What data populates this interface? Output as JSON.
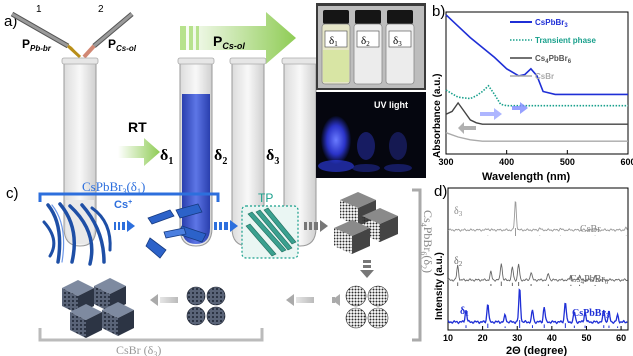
{
  "panel_a": {
    "label": "a)",
    "pipette1_num": "1",
    "pipette2_num": "2",
    "p_pbbr": "P",
    "p_pbbr_sub": "Pb-br",
    "p_csol": "P",
    "p_csol_sub": "Cs-ol",
    "arrow_top": "P",
    "arrow_top_sub": "Cs-ol",
    "rt": "RT",
    "tube_labels": [
      "δ",
      "δ",
      "δ"
    ],
    "tube_subs": [
      "1",
      "2",
      "3"
    ],
    "vial_labels": [
      "δ",
      "δ",
      "δ"
    ],
    "vial_subs": [
      "1",
      "2",
      "3"
    ],
    "uv_light": "UV light",
    "colors": {
      "blue_liquid": "#3a54c8",
      "uv_glow": "#3a4cff",
      "green_arrow": "#9ed36a"
    }
  },
  "panel_b": {
    "label": "b)",
    "ylabel": "Absorbance (a.u.)",
    "xlabel": "Wavelength (nm)",
    "xticks": [
      "300",
      "400",
      "500",
      "600"
    ],
    "legend": [
      {
        "name": "CsPbBr",
        "sub": "3",
        "color": "#1f2fd6",
        "style": "solid"
      },
      {
        "name": "Transient phase",
        "sub": "",
        "color": "#19a08c",
        "style": "dotted"
      },
      {
        "name": "Cs",
        "sub": "4",
        "tail": "PbBr",
        "sub2": "6",
        "color": "#444444",
        "style": "solid"
      },
      {
        "name": "CsBr",
        "sub": "",
        "color": "#aaaaaa",
        "style": "solid"
      }
    ]
  },
  "chart_b": {
    "type": "line",
    "xlim": [
      300,
      600
    ],
    "xlabel": "Wavelength (nm)",
    "ylabel": "Absorbance (a.u.)",
    "series": [
      {
        "name": "CsPbBr3",
        "x": [
          300,
          320,
          340,
          360,
          380,
          400,
          420,
          430,
          440,
          450,
          460,
          480,
          500,
          520,
          550,
          600
        ],
        "y": [
          0.98,
          0.9,
          0.82,
          0.75,
          0.68,
          0.6,
          0.55,
          0.56,
          0.6,
          0.55,
          0.44,
          0.42,
          0.42,
          0.42,
          0.42,
          0.42
        ]
      },
      {
        "name": "Transient phase",
        "x": [
          300,
          320,
          340,
          350,
          360,
          370,
          380,
          390,
          400,
          420,
          450,
          500,
          550,
          600
        ],
        "y": [
          0.45,
          0.4,
          0.39,
          0.41,
          0.44,
          0.48,
          0.42,
          0.35,
          0.34,
          0.34,
          0.34,
          0.34,
          0.34,
          0.34
        ]
      },
      {
        "name": "Cs4PbBr6",
        "x": [
          300,
          310,
          320,
          330,
          340,
          350,
          360,
          380,
          400,
          450,
          500,
          600
        ],
        "y": [
          0.28,
          0.3,
          0.36,
          0.3,
          0.24,
          0.22,
          0.21,
          0.21,
          0.21,
          0.21,
          0.21,
          0.21
        ]
      },
      {
        "name": "CsBr",
        "x": [
          300,
          320,
          340,
          360,
          400,
          450,
          500,
          600
        ],
        "y": [
          0.15,
          0.12,
          0.1,
          0.09,
          0.09,
          0.09,
          0.09,
          0.09
        ]
      }
    ]
  },
  "panel_c": {
    "label": "c)",
    "cspbbr3_label": "CsPbBr",
    "cspbbr3_sub": "3",
    "cspbbr3_tail": "(δ",
    "cspbbr3_tail_sub": "1",
    "cspbbr3_close": ")",
    "cs_plus": "Cs",
    "cs_plus_sup": "+",
    "tp": "TP",
    "cs4_label": "Cs",
    "cs4_sub": "4",
    "cs4_mid": "PbBr",
    "cs4_sub2": "6",
    "cs4_tail": "(δ",
    "cs4_tail_sub": "2",
    "cs4_close": ")",
    "csbr_label": "CsBr (δ",
    "csbr_sub": "3",
    "csbr_close": ")"
  },
  "panel_d": {
    "label": "d)",
    "ylabel": "Intensity (a.u.)",
    "xlabel": "2Θ (degree)",
    "xticks": [
      "10",
      "20",
      "30",
      "40",
      "50",
      "60"
    ],
    "traces": [
      {
        "id": "d3",
        "label": "δ",
        "sub": "3",
        "ref": "CsBr"
      },
      {
        "id": "d2",
        "label": "δ",
        "sub": "2",
        "ref": "Cs",
        "ref_sub": "4",
        "ref_tail": "PbBr",
        "ref_sub2": "6"
      },
      {
        "id": "d1",
        "label": "δ",
        "sub": "1",
        "ref": "CsPbBr",
        "ref_sub": "3"
      }
    ]
  },
  "chart_d": {
    "type": "line",
    "xlim": [
      10,
      62
    ],
    "xlabel": "2Θ (degree)",
    "ylabel": "Intensity (a.u.)",
    "series": [
      {
        "name": "δ3",
        "peaks": [
          [
            21.5,
            0.05
          ],
          [
            29.5,
            1.0
          ],
          [
            36.5,
            0.06
          ],
          [
            42.5,
            0.05
          ],
          [
            52.5,
            0.05
          ],
          [
            61.5,
            0.06
          ]
        ]
      },
      {
        "name": "δ2",
        "peaks": [
          [
            12.8,
            0.45
          ],
          [
            22.4,
            0.25
          ],
          [
            25.4,
            0.55
          ],
          [
            28.6,
            0.4
          ],
          [
            30.4,
            0.5
          ],
          [
            34.0,
            0.25
          ],
          [
            39.0,
            0.2
          ],
          [
            45.5,
            0.15
          ],
          [
            48.0,
            0.15
          ],
          [
            52.5,
            0.12
          ]
        ]
      },
      {
        "name": "δ1",
        "peaks": [
          [
            15.2,
            0.35
          ],
          [
            21.5,
            0.55
          ],
          [
            26.5,
            0.2
          ],
          [
            30.7,
            1.0
          ],
          [
            34.4,
            0.35
          ],
          [
            37.8,
            0.45
          ],
          [
            43.9,
            0.6
          ],
          [
            46.5,
            0.3
          ],
          [
            49.6,
            0.3
          ],
          [
            55.0,
            0.35
          ],
          [
            56.5,
            0.3
          ],
          [
            59.0,
            0.2
          ]
        ]
      }
    ]
  }
}
